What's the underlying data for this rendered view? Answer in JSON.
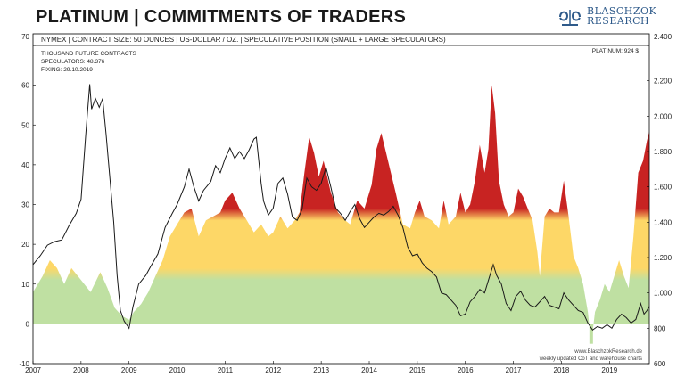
{
  "header": {
    "title": "PLATINUM | COMMITMENTS OF TRADERS",
    "logo_text_line1": "BLASCHZOK",
    "logo_text_line2": "RESEARCH",
    "subtitle": "NYMEX | CONTRACT SIZE: 50 OUNCES | US-DOLLAR / OZ. | SPECULATIVE POSITION (SMALL + LARGE SPECULATORS)"
  },
  "annotations": {
    "unit": "THOUSAND FUTURE CONTRACTS",
    "speculators": "SPECULATORS: 48.376",
    "fixing": "FIXING: 29.10.2019",
    "price_label": "PLATINUM: 924 $",
    "source_line1": "www.BlaschzokResearch.de",
    "source_line2": "weekly updated CoT and warehouse charts"
  },
  "colors": {
    "green": "#bfe0a2",
    "yellow": "#fdd767",
    "red": "#c82322",
    "line": "#1a1a1a",
    "logo": "#2e5a8a"
  },
  "chart_data": {
    "type": "area",
    "title": "PLATINUM | COMMITMENTS OF TRADERS",
    "left_axis": {
      "label": "THOUSAND FUTURE CONTRACTS",
      "min": -10,
      "max": 70,
      "ticks": [
        "70",
        "60",
        "50",
        "40",
        "30",
        "20",
        "10",
        "0",
        "-10"
      ]
    },
    "right_axis": {
      "min": 600,
      "max": 2400,
      "ticks": [
        "2.400",
        "2.200",
        "2.000",
        "1.800",
        "1.600",
        "1.400",
        "1.200",
        "1.000",
        "800",
        "600"
      ]
    },
    "x_axis": {
      "min": 2007,
      "max": 2019.83,
      "ticks": [
        "2007",
        "2008",
        "2009",
        "2010",
        "2011",
        "2012",
        "2013",
        "2014",
        "2015",
        "2016",
        "2017",
        "2018",
        "2019"
      ]
    },
    "color_bands": {
      "green_below": 12,
      "yellow_below": 28,
      "red_above": 28
    },
    "grid": false,
    "legend": "none",
    "series": [
      {
        "name": "SPECULATORS",
        "axis": "left",
        "render": "area",
        "points": [
          [
            2007.0,
            8
          ],
          [
            2007.2,
            12
          ],
          [
            2007.35,
            16
          ],
          [
            2007.5,
            14
          ],
          [
            2007.65,
            10
          ],
          [
            2007.8,
            14
          ],
          [
            2008.0,
            11
          ],
          [
            2008.2,
            8
          ],
          [
            2008.4,
            13
          ],
          [
            2008.55,
            9
          ],
          [
            2008.7,
            4
          ],
          [
            2008.85,
            2
          ],
          [
            2009.0,
            1
          ],
          [
            2009.1,
            3
          ],
          [
            2009.25,
            5
          ],
          [
            2009.4,
            8
          ],
          [
            2009.55,
            12
          ],
          [
            2009.7,
            16
          ],
          [
            2009.85,
            22
          ],
          [
            2010.0,
            25
          ],
          [
            2010.15,
            28
          ],
          [
            2010.3,
            29
          ],
          [
            2010.45,
            22
          ],
          [
            2010.6,
            26
          ],
          [
            2010.75,
            27
          ],
          [
            2010.9,
            28
          ],
          [
            2011.0,
            31
          ],
          [
            2011.15,
            33
          ],
          [
            2011.3,
            29
          ],
          [
            2011.45,
            26
          ],
          [
            2011.6,
            23
          ],
          [
            2011.75,
            25
          ],
          [
            2011.9,
            22
          ],
          [
            2012.0,
            23
          ],
          [
            2012.15,
            27
          ],
          [
            2012.3,
            24
          ],
          [
            2012.45,
            26
          ],
          [
            2012.55,
            28
          ],
          [
            2012.65,
            38
          ],
          [
            2012.75,
            47
          ],
          [
            2012.85,
            43
          ],
          [
            2012.95,
            37
          ],
          [
            2013.05,
            41
          ],
          [
            2013.2,
            33
          ],
          [
            2013.35,
            28
          ],
          [
            2013.5,
            26
          ],
          [
            2013.6,
            25
          ],
          [
            2013.75,
            31
          ],
          [
            2013.9,
            29
          ],
          [
            2014.05,
            35
          ],
          [
            2014.15,
            44
          ],
          [
            2014.25,
            48
          ],
          [
            2014.35,
            43
          ],
          [
            2014.45,
            38
          ],
          [
            2014.55,
            33
          ],
          [
            2014.7,
            25
          ],
          [
            2014.85,
            24
          ],
          [
            2014.95,
            28
          ],
          [
            2015.05,
            31
          ],
          [
            2015.15,
            27
          ],
          [
            2015.3,
            26
          ],
          [
            2015.45,
            24
          ],
          [
            2015.55,
            31
          ],
          [
            2015.65,
            25
          ],
          [
            2015.8,
            27
          ],
          [
            2015.9,
            33
          ],
          [
            2016.0,
            28
          ],
          [
            2016.1,
            30
          ],
          [
            2016.2,
            36
          ],
          [
            2016.3,
            45
          ],
          [
            2016.4,
            38
          ],
          [
            2016.48,
            44
          ],
          [
            2016.55,
            60
          ],
          [
            2016.62,
            53
          ],
          [
            2016.7,
            36
          ],
          [
            2016.8,
            30
          ],
          [
            2016.9,
            27
          ],
          [
            2017.0,
            28
          ],
          [
            2017.1,
            34
          ],
          [
            2017.2,
            32
          ],
          [
            2017.3,
            29
          ],
          [
            2017.4,
            26
          ],
          [
            2017.5,
            18
          ],
          [
            2017.55,
            12
          ],
          [
            2017.65,
            27
          ],
          [
            2017.75,
            29
          ],
          [
            2017.85,
            28
          ],
          [
            2017.95,
            28
          ],
          [
            2018.05,
            36
          ],
          [
            2018.15,
            27
          ],
          [
            2018.25,
            17
          ],
          [
            2018.35,
            14
          ],
          [
            2018.45,
            10
          ],
          [
            2018.55,
            3
          ],
          [
            2018.62,
            -5
          ],
          [
            2018.7,
            3
          ],
          [
            2018.8,
            6
          ],
          [
            2018.9,
            10
          ],
          [
            2019.0,
            8
          ],
          [
            2019.1,
            12
          ],
          [
            2019.2,
            16
          ],
          [
            2019.3,
            12
          ],
          [
            2019.4,
            9
          ],
          [
            2019.5,
            22
          ],
          [
            2019.6,
            38
          ],
          [
            2019.7,
            41
          ],
          [
            2019.78,
            46
          ],
          [
            2019.83,
            48.4
          ]
        ]
      },
      {
        "name": "PLATINUM",
        "axis": "right",
        "render": "line",
        "points": [
          [
            2007.0,
            1160
          ],
          [
            2007.15,
            1210
          ],
          [
            2007.3,
            1270
          ],
          [
            2007.45,
            1290
          ],
          [
            2007.6,
            1300
          ],
          [
            2007.75,
            1380
          ],
          [
            2007.9,
            1450
          ],
          [
            2008.0,
            1530
          ],
          [
            2008.1,
            1900
          ],
          [
            2008.18,
            2180
          ],
          [
            2008.22,
            2040
          ],
          [
            2008.3,
            2100
          ],
          [
            2008.38,
            2050
          ],
          [
            2008.45,
            2100
          ],
          [
            2008.52,
            1900
          ],
          [
            2008.6,
            1650
          ],
          [
            2008.68,
            1400
          ],
          [
            2008.75,
            1100
          ],
          [
            2008.82,
            900
          ],
          [
            2008.9,
            840
          ],
          [
            2009.0,
            800
          ],
          [
            2009.08,
            920
          ],
          [
            2009.2,
            1050
          ],
          [
            2009.35,
            1100
          ],
          [
            2009.45,
            1150
          ],
          [
            2009.6,
            1220
          ],
          [
            2009.75,
            1370
          ],
          [
            2009.9,
            1450
          ],
          [
            2010.0,
            1500
          ],
          [
            2010.15,
            1600
          ],
          [
            2010.25,
            1700
          ],
          [
            2010.35,
            1600
          ],
          [
            2010.45,
            1520
          ],
          [
            2010.55,
            1580
          ],
          [
            2010.7,
            1630
          ],
          [
            2010.8,
            1720
          ],
          [
            2010.9,
            1680
          ],
          [
            2011.0,
            1760
          ],
          [
            2011.1,
            1820
          ],
          [
            2011.2,
            1760
          ],
          [
            2011.3,
            1800
          ],
          [
            2011.4,
            1760
          ],
          [
            2011.5,
            1810
          ],
          [
            2011.6,
            1870
          ],
          [
            2011.65,
            1880
          ],
          [
            2011.75,
            1620
          ],
          [
            2011.8,
            1520
          ],
          [
            2011.9,
            1440
          ],
          [
            2012.0,
            1480
          ],
          [
            2012.1,
            1620
          ],
          [
            2012.2,
            1650
          ],
          [
            2012.3,
            1560
          ],
          [
            2012.4,
            1430
          ],
          [
            2012.5,
            1410
          ],
          [
            2012.6,
            1470
          ],
          [
            2012.7,
            1650
          ],
          [
            2012.8,
            1600
          ],
          [
            2012.9,
            1580
          ],
          [
            2013.0,
            1620
          ],
          [
            2013.1,
            1710
          ],
          [
            2013.2,
            1600
          ],
          [
            2013.3,
            1480
          ],
          [
            2013.4,
            1450
          ],
          [
            2013.5,
            1410
          ],
          [
            2013.6,
            1460
          ],
          [
            2013.7,
            1500
          ],
          [
            2013.8,
            1420
          ],
          [
            2013.9,
            1370
          ],
          [
            2014.0,
            1400
          ],
          [
            2014.1,
            1430
          ],
          [
            2014.2,
            1450
          ],
          [
            2014.3,
            1440
          ],
          [
            2014.4,
            1460
          ],
          [
            2014.5,
            1490
          ],
          [
            2014.6,
            1440
          ],
          [
            2014.7,
            1370
          ],
          [
            2014.8,
            1260
          ],
          [
            2014.9,
            1210
          ],
          [
            2015.0,
            1220
          ],
          [
            2015.1,
            1170
          ],
          [
            2015.2,
            1140
          ],
          [
            2015.3,
            1120
          ],
          [
            2015.4,
            1090
          ],
          [
            2015.5,
            1000
          ],
          [
            2015.6,
            990
          ],
          [
            2015.7,
            960
          ],
          [
            2015.8,
            930
          ],
          [
            2015.9,
            870
          ],
          [
            2016.0,
            880
          ],
          [
            2016.1,
            950
          ],
          [
            2016.2,
            980
          ],
          [
            2016.3,
            1020
          ],
          [
            2016.4,
            1000
          ],
          [
            2016.5,
            1090
          ],
          [
            2016.58,
            1160
          ],
          [
            2016.65,
            1100
          ],
          [
            2016.75,
            1050
          ],
          [
            2016.85,
            940
          ],
          [
            2016.95,
            900
          ],
          [
            2017.05,
            980
          ],
          [
            2017.15,
            1010
          ],
          [
            2017.25,
            960
          ],
          [
            2017.35,
            930
          ],
          [
            2017.45,
            920
          ],
          [
            2017.55,
            950
          ],
          [
            2017.65,
            980
          ],
          [
            2017.75,
            930
          ],
          [
            2017.85,
            920
          ],
          [
            2017.95,
            910
          ],
          [
            2018.05,
            1000
          ],
          [
            2018.15,
            960
          ],
          [
            2018.25,
            930
          ],
          [
            2018.35,
            900
          ],
          [
            2018.45,
            890
          ],
          [
            2018.55,
            830
          ],
          [
            2018.65,
            790
          ],
          [
            2018.75,
            810
          ],
          [
            2018.85,
            800
          ],
          [
            2018.95,
            820
          ],
          [
            2019.05,
            800
          ],
          [
            2019.15,
            850
          ],
          [
            2019.25,
            880
          ],
          [
            2019.35,
            860
          ],
          [
            2019.45,
            830
          ],
          [
            2019.55,
            850
          ],
          [
            2019.65,
            940
          ],
          [
            2019.72,
            880
          ],
          [
            2019.78,
            900
          ],
          [
            2019.83,
            924
          ]
        ]
      }
    ]
  }
}
